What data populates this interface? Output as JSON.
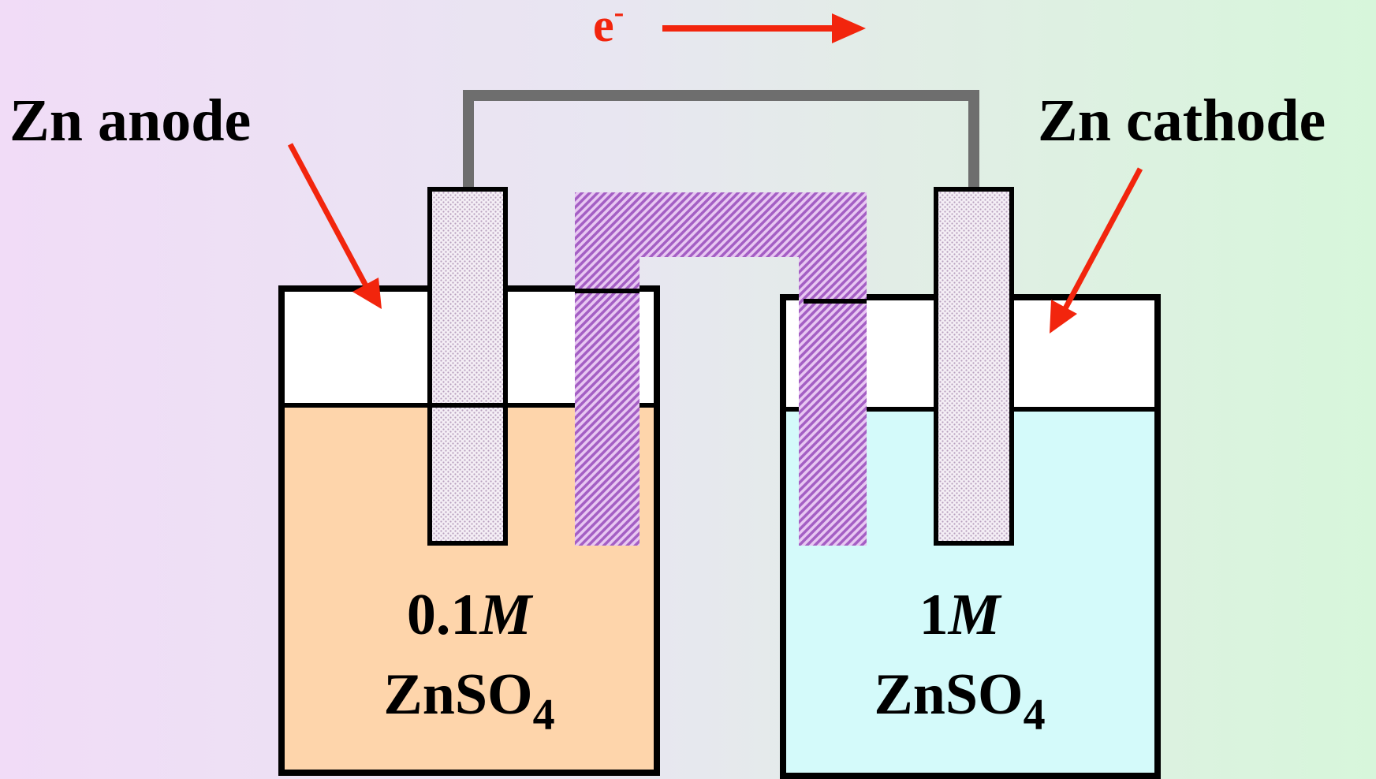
{
  "electron_flow": {
    "symbol": "e",
    "charge": "-"
  },
  "anode": {
    "label": "Zn anode"
  },
  "cathode": {
    "label": "Zn cathode"
  },
  "left_solution": {
    "conc_number": "0.1",
    "conc_unit": "M",
    "formula_main": "ZnSO",
    "formula_sub": "4"
  },
  "right_solution": {
    "conc_number": "1",
    "conc_unit": "M",
    "formula_main": "ZnSO",
    "formula_sub": "4"
  },
  "colors": {
    "arrow": "#f2250d",
    "wire": "#6e6e6e",
    "left_solution": "#fed5ab",
    "right_solution": "#d4fafa",
    "salt_bridge": "#a45fc4",
    "electrode": "#e4d8e6"
  }
}
